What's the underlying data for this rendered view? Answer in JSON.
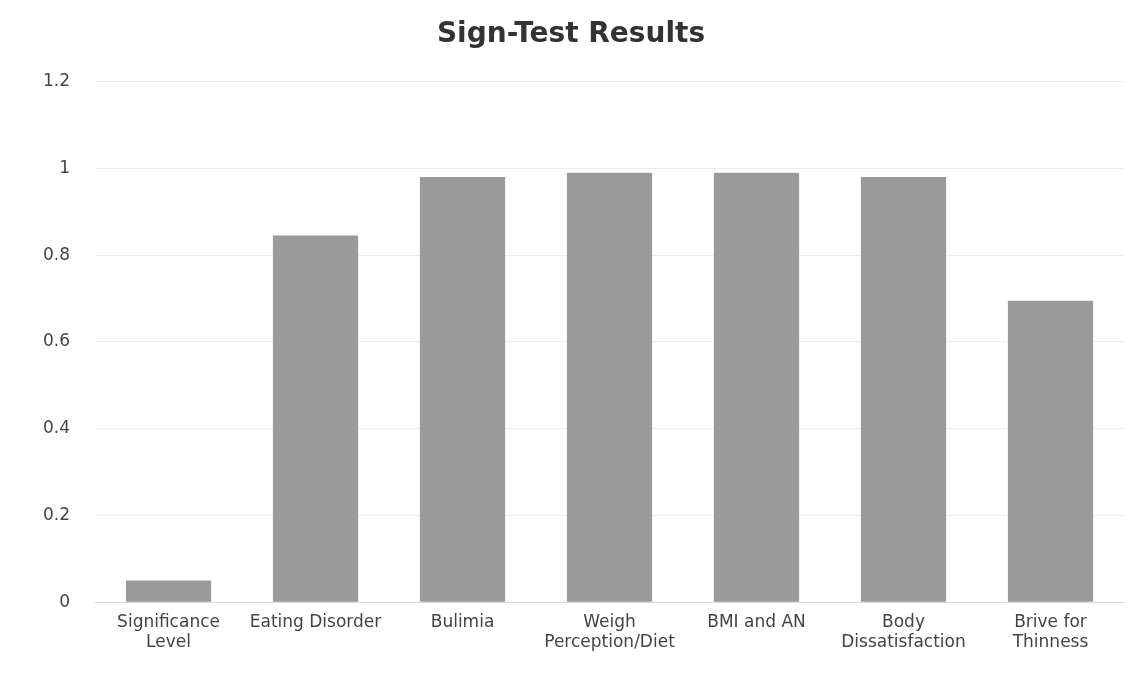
{
  "chart_data": {
    "type": "bar",
    "title": "Sign-Test Results",
    "categories": [
      "Significance Level",
      "Eating Disorder",
      "Bulimia",
      "Weigh Perception/Diet",
      "BMI and AN",
      "Body Dissatisfaction",
      "Brive for Thinness"
    ],
    "values": [
      0.05,
      0.845,
      0.98,
      0.99,
      0.99,
      0.98,
      0.695
    ],
    "color": "#9a9a9a",
    "ylim": [
      0,
      1.2
    ],
    "yticks": [
      0,
      0.2,
      0.4,
      0.6,
      0.8,
      1,
      1.2
    ],
    "grid": "y"
  }
}
